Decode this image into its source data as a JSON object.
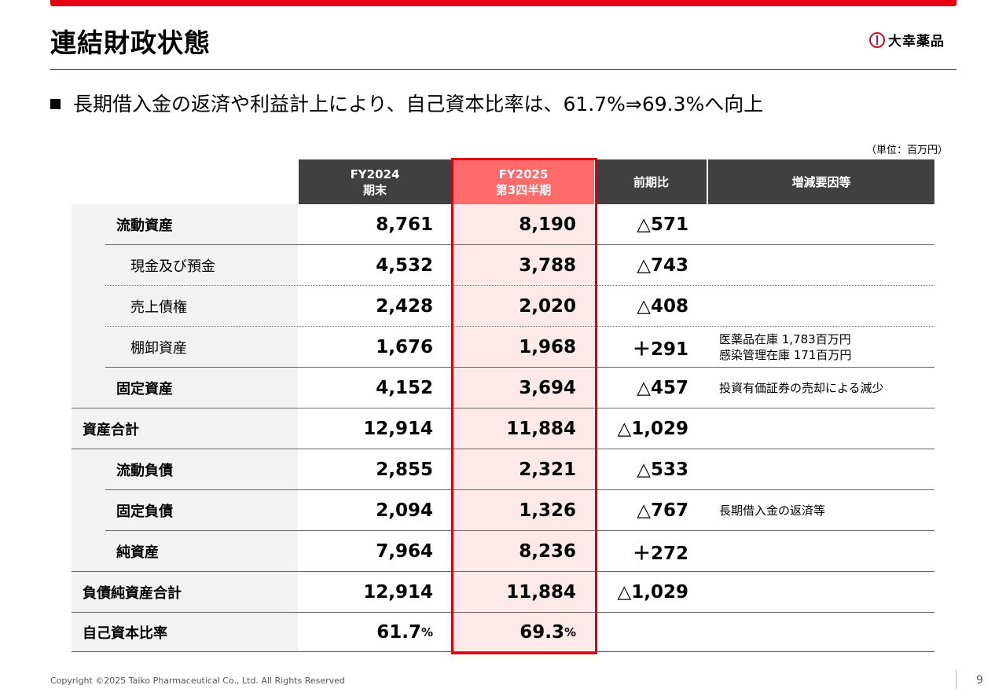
{
  "slide": {
    "title": "連結財政状態",
    "logo_text": "大幸薬品",
    "headline": "長期借入金の返済や利益計上により、自己資本比率は、61.7%⇒69.3%へ向上",
    "unit_note": "（単位：百万円）",
    "copyright": "Copyright ©2025  Taiko Pharmaceutical Co., Ltd. All Rights Reserved",
    "page_number": "9",
    "accent_color": "#e60012",
    "highlight_color": "#ff6b6b"
  },
  "table": {
    "headers": {
      "fy2024_line1": "FY2024",
      "fy2024_line2": "期末",
      "fy2025_line1": "FY2025",
      "fy2025_line2": "第3四半期",
      "change": "前期比",
      "reason": "増減要因等"
    },
    "rows": [
      {
        "label": "流動資産",
        "fy2024": "8,761",
        "fy2025": "8,190",
        "change": "△571",
        "reason1": "",
        "reason2": ""
      },
      {
        "label": "現金及び預金",
        "fy2024": "4,532",
        "fy2025": "3,788",
        "change": "△743",
        "reason1": "",
        "reason2": ""
      },
      {
        "label": "売上債権",
        "fy2024": "2,428",
        "fy2025": "2,020",
        "change": "△408",
        "reason1": "",
        "reason2": ""
      },
      {
        "label": "棚卸資産",
        "fy2024": "1,676",
        "fy2025": "1,968",
        "change": "＋291",
        "reason1": "医薬品在庫 1,783百万円",
        "reason2": "感染管理在庫 171百万円"
      },
      {
        "label": "固定資産",
        "fy2024": "4,152",
        "fy2025": "3,694",
        "change": "△457",
        "reason1": "投資有価証券の売却による減少",
        "reason2": ""
      },
      {
        "label": "資産合計",
        "fy2024": "12,914",
        "fy2025": "11,884",
        "change": "△1,029",
        "reason1": "",
        "reason2": ""
      },
      {
        "label": "流動負債",
        "fy2024": "2,855",
        "fy2025": "2,321",
        "change": "△533",
        "reason1": "",
        "reason2": ""
      },
      {
        "label": "固定負債",
        "fy2024": "2,094",
        "fy2025": "1,326",
        "change": "△767",
        "reason1": "長期借入金の返済等",
        "reason2": ""
      },
      {
        "label": "純資産",
        "fy2024": "7,964",
        "fy2025": "8,236",
        "change": "＋272",
        "reason1": "",
        "reason2": ""
      },
      {
        "label": "負債純資産合計",
        "fy2024": "12,914",
        "fy2025": "11,884",
        "change": "△1,029",
        "reason1": "",
        "reason2": ""
      },
      {
        "label": "自己資本比率",
        "fy2024": "61.7",
        "fy2025": "69.3",
        "change": "",
        "reason1": "",
        "reason2": "",
        "pct_suffix": "%"
      }
    ]
  }
}
